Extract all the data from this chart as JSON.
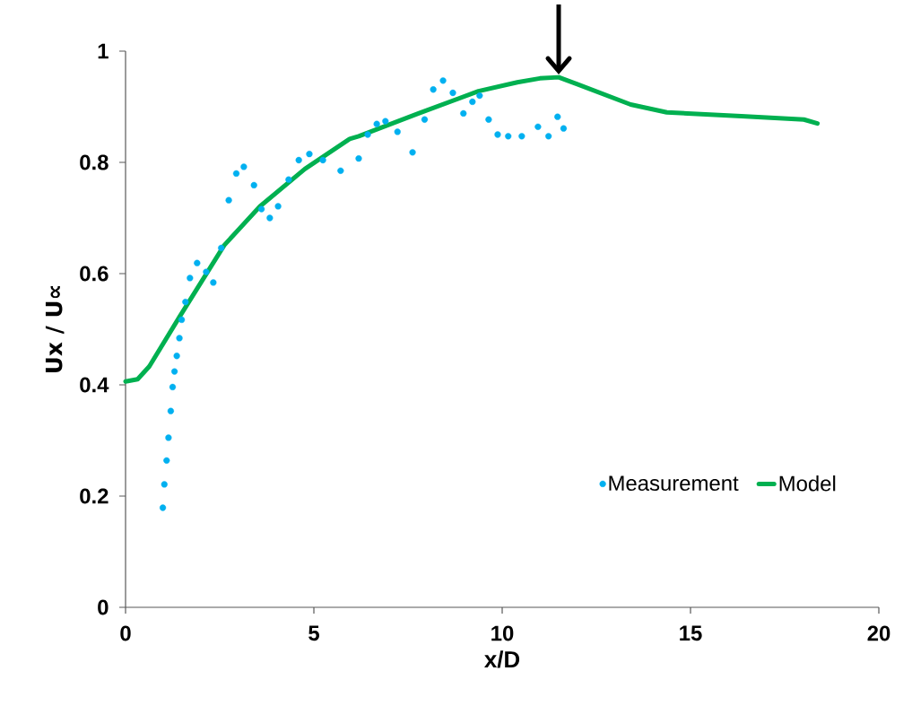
{
  "chart_data": {
    "type": "line",
    "xlabel": "x/D",
    "ylabel": "Ux / U∝",
    "xlim": [
      0,
      20
    ],
    "ylim": [
      0,
      1
    ],
    "xticks": [
      0,
      5,
      10,
      15,
      20
    ],
    "yticks": [
      0,
      0.2,
      0.4,
      0.6,
      0.8,
      1
    ],
    "legend": "bottom right",
    "grid": false,
    "series": [
      {
        "name": "Measurement",
        "type": "scatter",
        "marker": "circle",
        "color": "#00b0f0",
        "x": [
          0.99,
          1.03,
          1.09,
          1.14,
          1.2,
          1.25,
          1.3,
          1.36,
          1.43,
          1.49,
          1.59,
          1.71,
          1.9,
          2.14,
          2.33,
          2.54,
          2.74,
          2.94,
          3.14,
          3.41,
          3.61,
          3.83,
          4.05,
          4.33,
          4.6,
          4.88,
          5.24,
          5.71,
          6.19,
          6.43,
          6.67,
          6.9,
          7.22,
          7.62,
          7.94,
          8.17,
          8.43,
          8.69,
          8.97,
          9.21,
          9.4,
          9.64,
          9.88,
          10.16,
          10.52,
          10.95,
          11.23,
          11.47,
          11.63
        ],
        "values": [
          0.179,
          0.221,
          0.264,
          0.305,
          0.353,
          0.396,
          0.424,
          0.452,
          0.484,
          0.517,
          0.549,
          0.592,
          0.619,
          0.603,
          0.584,
          0.646,
          0.732,
          0.78,
          0.792,
          0.759,
          0.716,
          0.7,
          0.721,
          0.769,
          0.804,
          0.815,
          0.804,
          0.785,
          0.807,
          0.85,
          0.869,
          0.874,
          0.855,
          0.818,
          0.877,
          0.931,
          0.947,
          0.925,
          0.888,
          0.909,
          0.92,
          0.877,
          0.85,
          0.847,
          0.847,
          0.864,
          0.847,
          0.882,
          0.861
        ]
      },
      {
        "name": "Model",
        "marker": "none",
        "line_style": "solid",
        "color": "#00b050",
        "x": [
          0,
          0.32,
          0.63,
          1.43,
          2.62,
          3.57,
          4.76,
          5.95,
          6.19,
          7.78,
          9.37,
          10.4,
          11.0,
          11.5,
          11.98,
          13.41,
          14.37,
          16.35,
          18.01,
          18.37
        ],
        "values": [
          0.406,
          0.41,
          0.433,
          0.522,
          0.651,
          0.721,
          0.788,
          0.842,
          0.847,
          0.888,
          0.928,
          0.944,
          0.951,
          0.953,
          0.941,
          0.904,
          0.89,
          0.883,
          0.877,
          0.87
        ]
      }
    ]
  }
}
